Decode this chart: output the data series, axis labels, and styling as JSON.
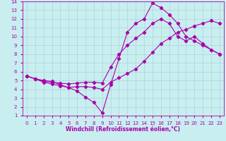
{
  "xlabel": "Windchill (Refroidissement éolien,°C)",
  "xlim": [
    -0.5,
    23.5
  ],
  "ylim": [
    1,
    14
  ],
  "xticks": [
    0,
    1,
    2,
    3,
    4,
    5,
    6,
    7,
    8,
    9,
    10,
    11,
    12,
    13,
    14,
    15,
    16,
    17,
    18,
    19,
    20,
    21,
    22,
    23
  ],
  "yticks": [
    1,
    2,
    3,
    4,
    5,
    6,
    7,
    8,
    9,
    10,
    11,
    12,
    13,
    14
  ],
  "bg_color": "#c8eef0",
  "grid_color": "#aed4d6",
  "line_color": "#aa00aa",
  "line1_x": [
    0,
    1,
    2,
    3,
    4,
    5,
    6,
    7,
    8,
    9,
    10,
    11,
    12,
    13,
    14,
    15,
    16,
    17,
    18,
    19,
    20,
    21,
    22,
    23
  ],
  "line1_y": [
    5.5,
    5.2,
    4.9,
    4.8,
    4.7,
    4.6,
    4.7,
    4.8,
    4.8,
    4.7,
    6.5,
    8.0,
    9.0,
    9.8,
    10.5,
    11.5,
    12.0,
    11.5,
    10.0,
    9.5,
    10.0,
    9.2,
    8.5,
    8.0
  ],
  "line2_x": [
    0,
    1,
    2,
    3,
    4,
    5,
    6,
    7,
    8,
    9,
    10,
    11,
    12,
    13,
    14,
    15,
    16,
    17,
    18,
    19,
    20,
    21,
    22,
    23
  ],
  "line2_y": [
    5.5,
    5.2,
    5.0,
    4.9,
    4.5,
    4.2,
    3.8,
    3.1,
    2.5,
    1.3,
    4.5,
    7.5,
    10.5,
    11.5,
    12.0,
    13.8,
    13.3,
    12.5,
    11.5,
    10.0,
    9.5,
    9.0,
    8.5,
    8.0
  ],
  "line3_x": [
    0,
    1,
    2,
    3,
    4,
    5,
    6,
    7,
    8,
    9,
    10,
    11,
    12,
    13,
    14,
    15,
    16,
    17,
    18,
    19,
    20,
    21,
    22,
    23
  ],
  "line3_y": [
    5.5,
    5.2,
    4.8,
    4.6,
    4.4,
    4.2,
    4.3,
    4.3,
    4.2,
    4.0,
    4.8,
    5.3,
    5.8,
    6.3,
    7.2,
    8.2,
    9.2,
    9.8,
    10.5,
    10.8,
    11.2,
    11.5,
    11.8,
    11.5
  ],
  "marker": "D",
  "markersize": 2.2,
  "linewidth": 0.8,
  "tick_fontsize": 5.0,
  "xlabel_fontsize": 5.5
}
